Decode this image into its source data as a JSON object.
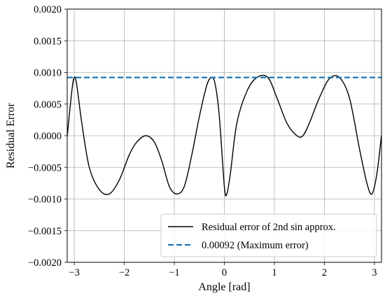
{
  "chart_data": {
    "type": "line",
    "title": "",
    "xlabel": "Angle [rad]",
    "ylabel": "Residual Error",
    "xlim": [
      -3.14159,
      3.14159
    ],
    "ylim": [
      -0.002,
      0.002
    ],
    "xticks": [
      -3,
      -2,
      -1,
      0,
      1,
      2,
      3
    ],
    "xtick_labels": [
      "−3",
      "−2",
      "−1",
      "0",
      "1",
      "2",
      "3"
    ],
    "yticks": [
      -0.002,
      -0.0015,
      -0.001,
      -0.0005,
      0,
      0.0005,
      0.001,
      0.0015,
      0.002
    ],
    "ytick_labels": [
      "−0.0020",
      "−0.0015",
      "−0.0010",
      "−0.0005",
      "0.0000",
      "0.0005",
      "0.0010",
      "0.0015",
      "0.0020"
    ],
    "grid": true,
    "legend_position": "lower-right",
    "series": [
      {
        "name": "Residual error of 2nd sin approx.",
        "style": "solid",
        "color": "#000000",
        "x": [
          -3.14,
          -3.05,
          -3.0,
          -2.95,
          -2.85,
          -2.7,
          -2.5,
          -2.3,
          -2.1,
          -1.9,
          -1.75,
          -1.57,
          -1.4,
          -1.25,
          -1.1,
          -0.95,
          -0.8,
          -0.65,
          -0.5,
          -0.35,
          -0.25,
          -0.18,
          -0.1,
          0.0,
          0.05,
          0.12,
          0.25,
          0.45,
          0.65,
          0.87,
          1.05,
          1.25,
          1.45,
          1.57,
          1.7,
          1.9,
          2.1,
          2.3,
          2.5,
          2.7,
          2.85,
          2.95,
          3.05,
          3.14
        ],
        "y": [
          0.0,
          0.0007,
          0.00092,
          0.0008,
          0.0002,
          -0.0005,
          -0.00085,
          -0.00092,
          -0.0007,
          -0.0003,
          -0.0001,
          0.0,
          -0.0001,
          -0.0004,
          -0.0008,
          -0.00092,
          -0.0008,
          -0.0003,
          0.0003,
          0.0008,
          0.00092,
          0.0008,
          0.0003,
          -0.0008,
          -0.00092,
          -0.0006,
          0.0002,
          0.0007,
          0.00092,
          0.00092,
          0.0006,
          0.0002,
          0.0,
          0.0,
          0.0002,
          0.0006,
          0.0009,
          0.00092,
          0.0006,
          -0.0002,
          -0.00075,
          -0.00092,
          -0.0006,
          0.0
        ]
      },
      {
        "name": "0.00092 (Maximum error)",
        "style": "dashed",
        "color": "#1f77b4",
        "x": [
          -3.14159,
          3.14159
        ],
        "y": [
          0.00092,
          0.00092
        ]
      }
    ]
  }
}
